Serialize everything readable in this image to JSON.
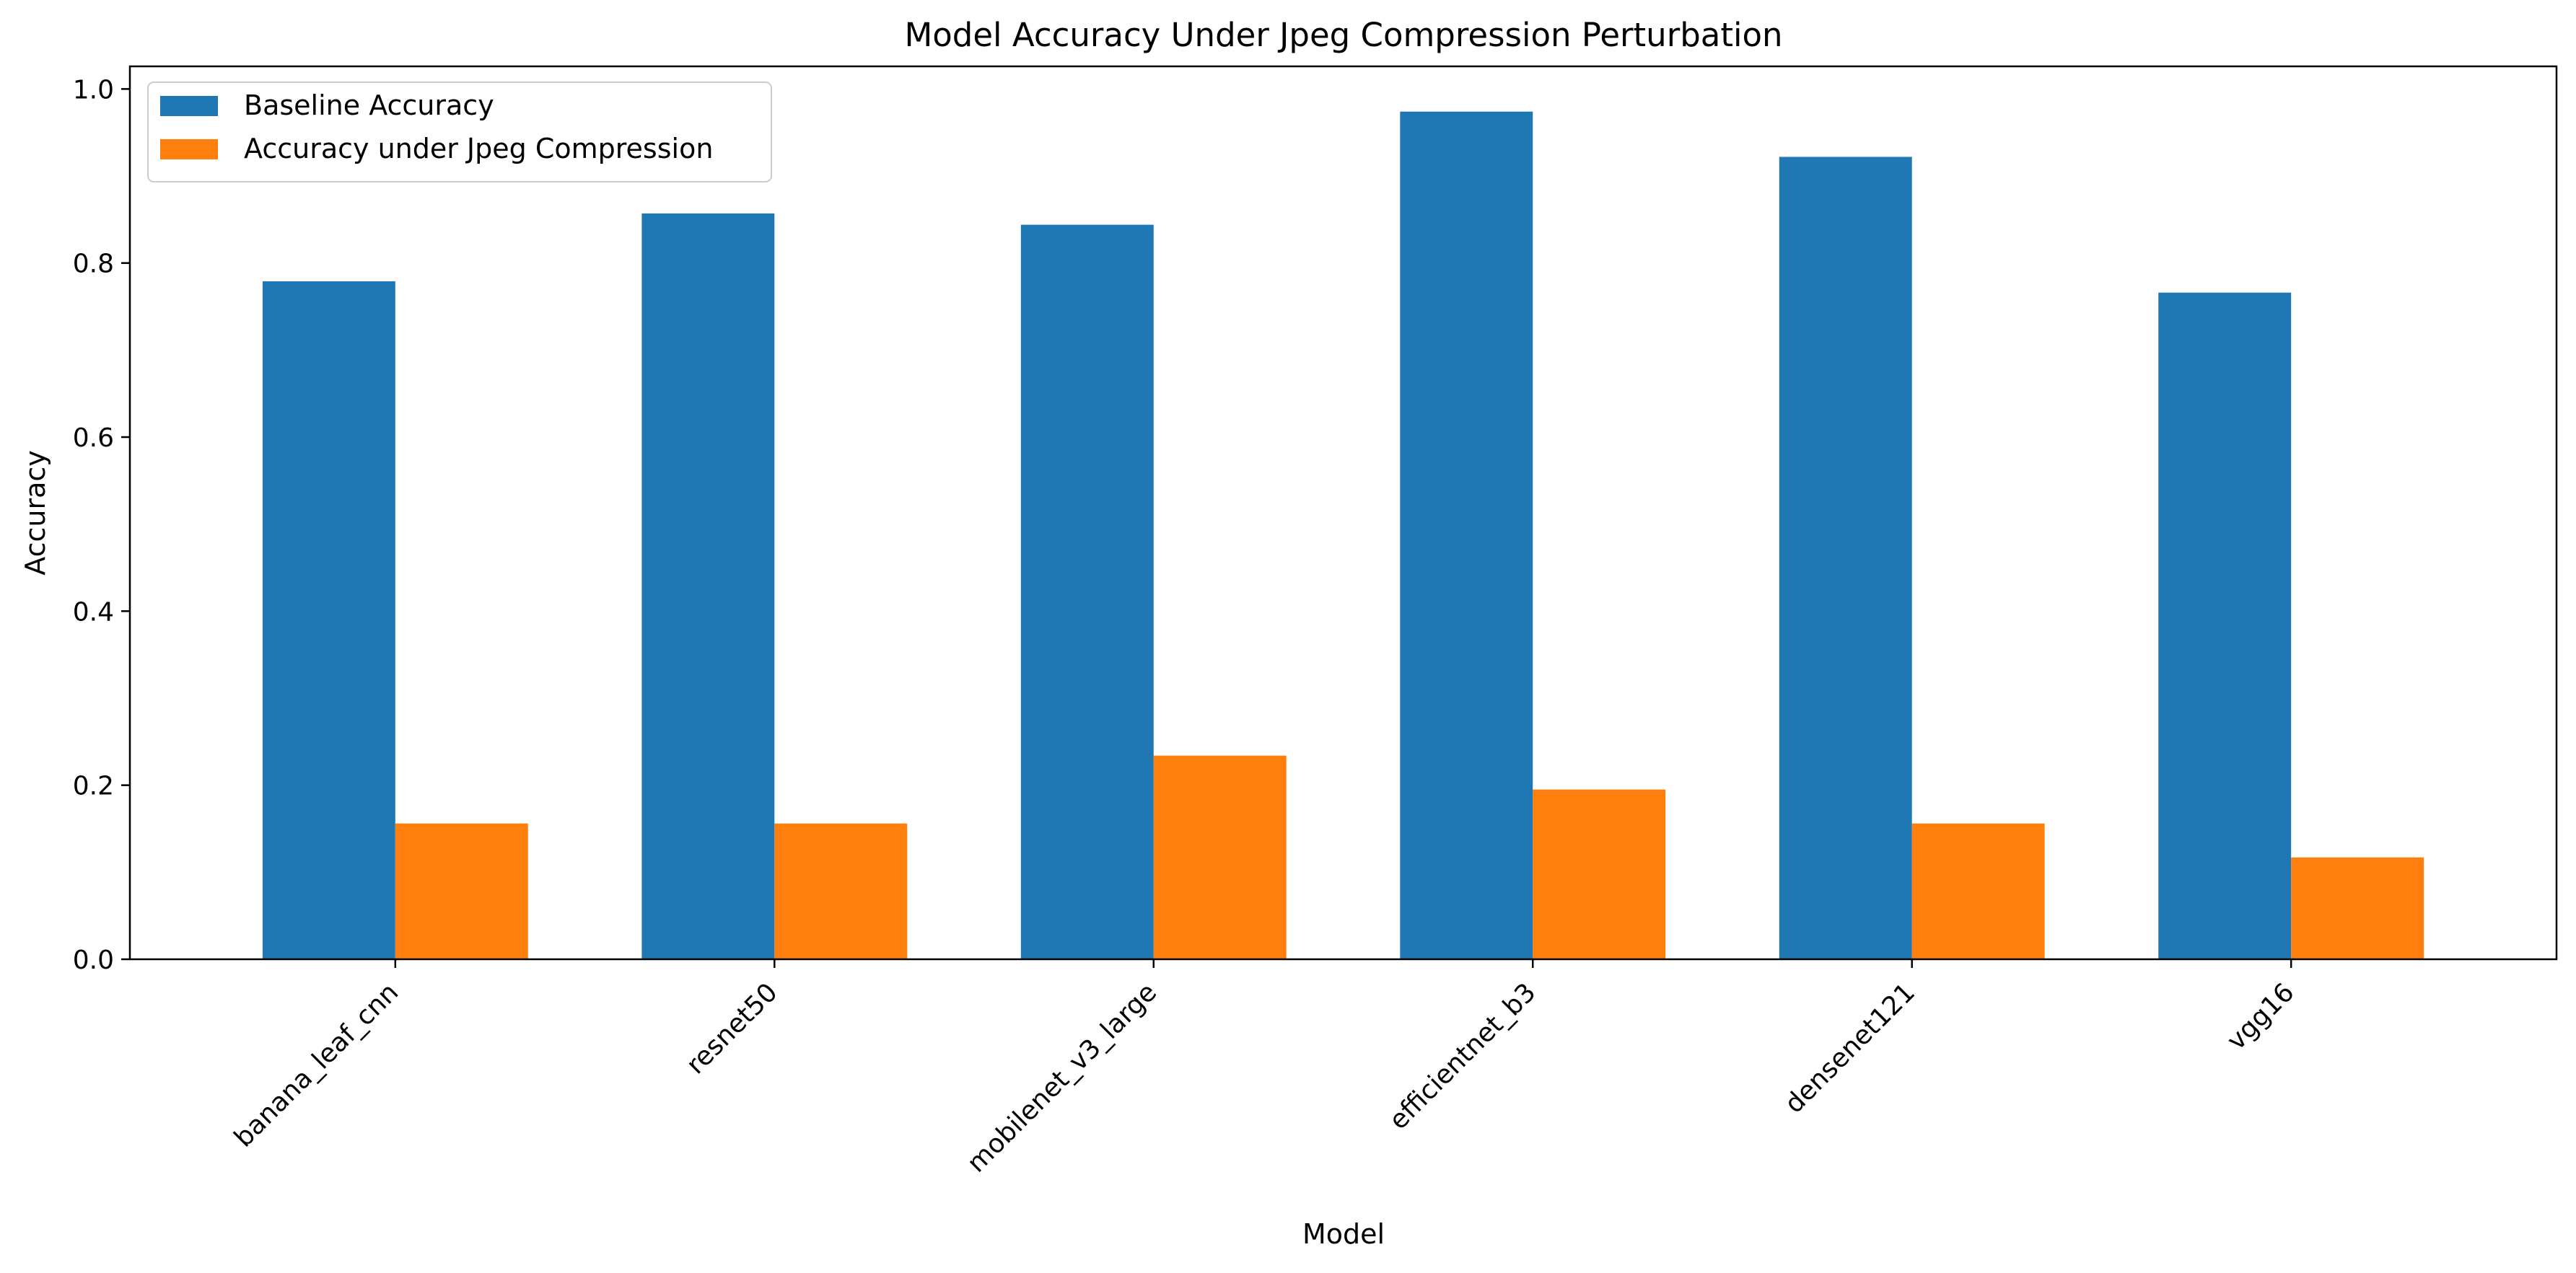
{
  "chart_data": {
    "type": "bar",
    "title": "Model Accuracy Under Jpeg Compression Perturbation",
    "xlabel": "Model",
    "ylabel": "Accuracy",
    "categories": [
      "banana_leaf_cnn",
      "resnet50",
      "mobilenet_v3_large",
      "efficientnet_b3",
      "densenet121",
      "vgg16"
    ],
    "series": [
      {
        "name": "Baseline Accuracy",
        "color": "#1f77b4",
        "values": [
          0.779,
          0.857,
          0.844,
          0.974,
          0.922,
          0.766
        ]
      },
      {
        "name": "Accuracy under Jpeg Compression",
        "color": "#ff7f0e",
        "values": [
          0.156,
          0.156,
          0.234,
          0.195,
          0.156,
          0.117
        ]
      }
    ],
    "ylim": [
      0,
      1.026
    ],
    "yticks": [
      0.0,
      0.2,
      0.4,
      0.6,
      0.8,
      1.0
    ],
    "ytick_labels": [
      "0.0",
      "0.2",
      "0.4",
      "0.6",
      "0.8",
      "1.0"
    ],
    "grid": false,
    "legend_position": "top-left"
  }
}
